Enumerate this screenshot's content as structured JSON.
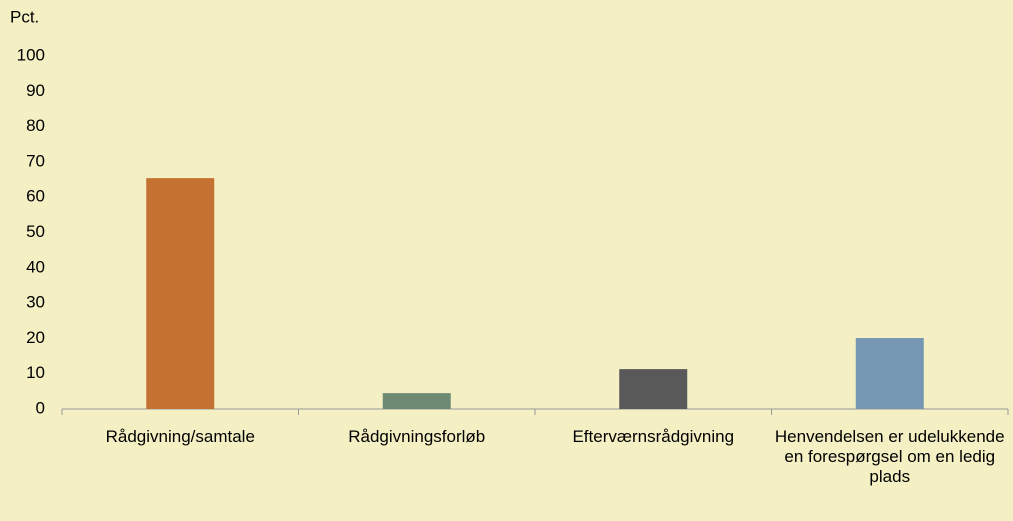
{
  "chart_data": {
    "type": "bar",
    "ylabel": "Pct.",
    "categories": [
      "Rådgivning/samtale",
      "Rådgivningsforløb",
      "Efterværnsrådgivning",
      "Henvendelsen er udelukkende en forespørgsel om en ledig plads"
    ],
    "values": [
      65.4,
      4.5,
      11.3,
      20.1
    ],
    "colors": [
      "#c47131",
      "#6e8a74",
      "#595959",
      "#7697b4"
    ],
    "ylim": [
      0,
      100
    ],
    "yticks": [
      0,
      10,
      20,
      30,
      40,
      50,
      60,
      70,
      80,
      90,
      100
    ],
    "grid": false
  }
}
